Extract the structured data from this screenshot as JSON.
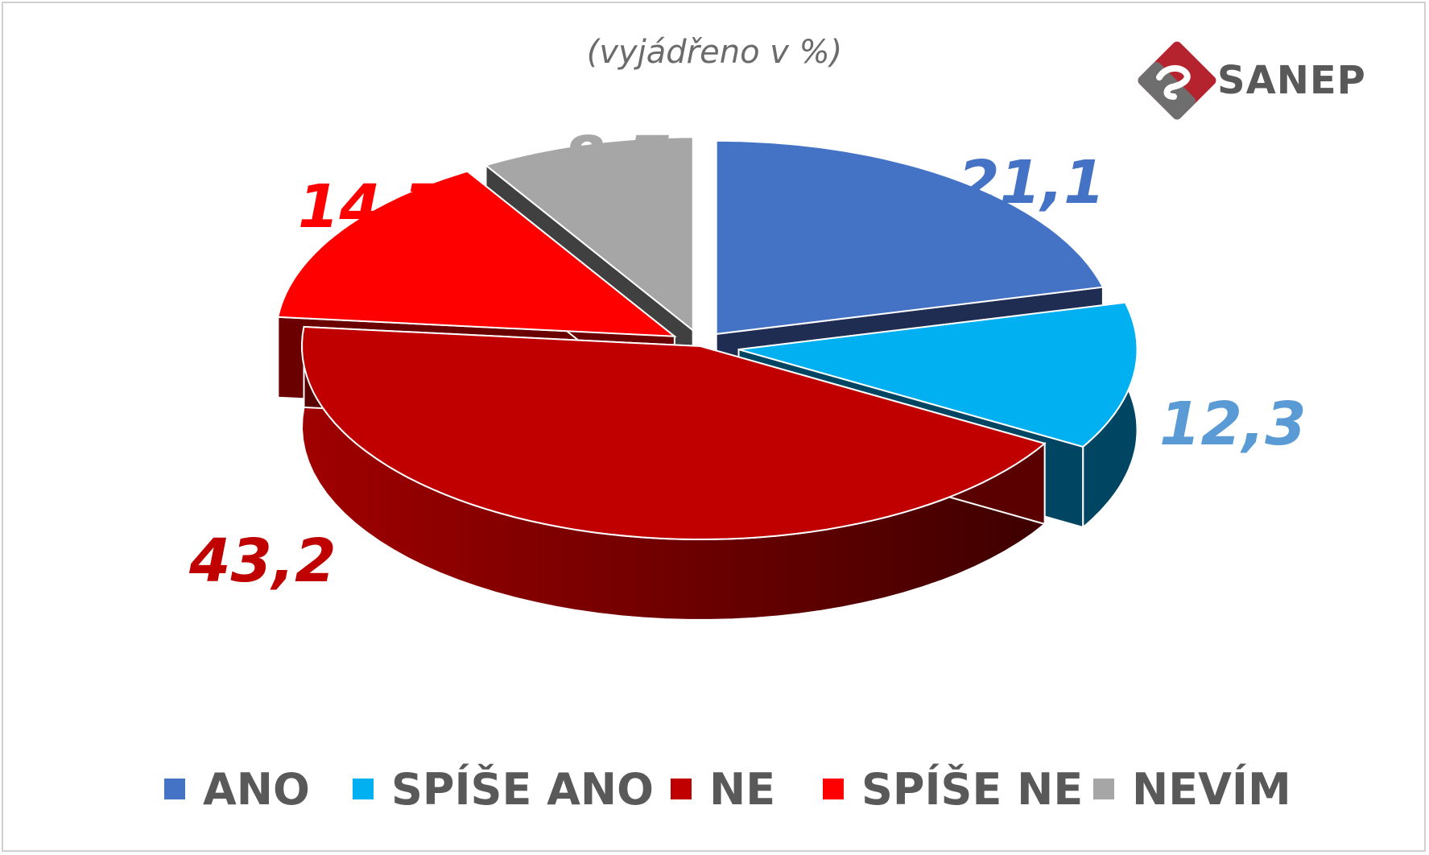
{
  "subtitle": "(vyjádřeno v %)",
  "logo": {
    "text": "SANEP",
    "accent": "#b5242e",
    "gray": "#595959"
  },
  "chart_data": {
    "type": "pie",
    "title": "",
    "subtitle": "(vyjádřeno v %)",
    "unit": "%",
    "legend_position": "bottom",
    "three_d": true,
    "exploded": true,
    "start_angle": "top",
    "direction": "clockwise",
    "slices": [
      {
        "name": "ANO",
        "value": 21.1,
        "label": "21,1",
        "color": "#4472c4",
        "side": "#1f2d52",
        "label_color": "#4472c4"
      },
      {
        "name": "SPÍŠE ANO",
        "value": 12.3,
        "label": "12,3",
        "color": "#00b0f0",
        "side": "#004561",
        "label_color": "#5b9bd5"
      },
      {
        "name": "NE",
        "value": 43.2,
        "label": "43,2",
        "color": "#c00000",
        "side": "#5a0000",
        "label_color": "#c00000"
      },
      {
        "name": "SPÍŠE NE",
        "value": 14.7,
        "label": "14,7",
        "color": "#ff0000",
        "side": "#6b0000",
        "label_color": "#ff0000"
      },
      {
        "name": "NEVÍM",
        "value": 8.7,
        "label": "8,7",
        "color": "#a6a6a6",
        "side": "#404040",
        "label_color": "#a6a6a6"
      }
    ]
  }
}
